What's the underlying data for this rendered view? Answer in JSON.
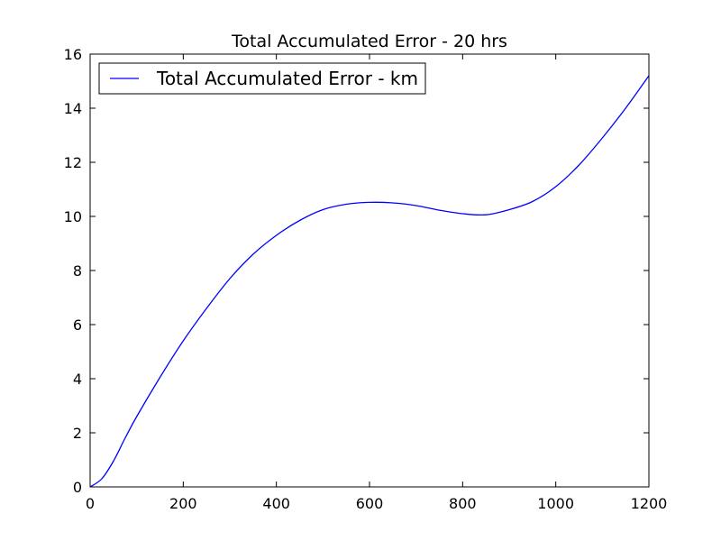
{
  "chart_data": {
    "type": "line",
    "title": "Total Accumulated Error - 20 hrs",
    "xlabel": "",
    "ylabel": "",
    "xlim": [
      0,
      1200
    ],
    "ylim": [
      0,
      16
    ],
    "xticks": [
      0,
      200,
      400,
      600,
      800,
      1000,
      1200
    ],
    "yticks": [
      0,
      2,
      4,
      6,
      8,
      10,
      12,
      14,
      16
    ],
    "grid": false,
    "legend": {
      "placement": "top-left"
    },
    "series": [
      {
        "name": "Total Accumulated Error - km",
        "color": "#0000ff",
        "x": [
          0,
          25,
          50,
          75,
          100,
          150,
          200,
          250,
          300,
          350,
          400,
          450,
          500,
          550,
          600,
          650,
          700,
          750,
          800,
          850,
          900,
          950,
          1000,
          1050,
          1100,
          1150,
          1200
        ],
        "y": [
          0,
          0.3,
          0.95,
          1.8,
          2.6,
          4.05,
          5.4,
          6.6,
          7.7,
          8.6,
          9.3,
          9.85,
          10.25,
          10.45,
          10.52,
          10.5,
          10.4,
          10.23,
          10.1,
          10.06,
          10.25,
          10.55,
          11.1,
          11.9,
          12.9,
          14.0,
          15.2
        ]
      }
    ]
  }
}
